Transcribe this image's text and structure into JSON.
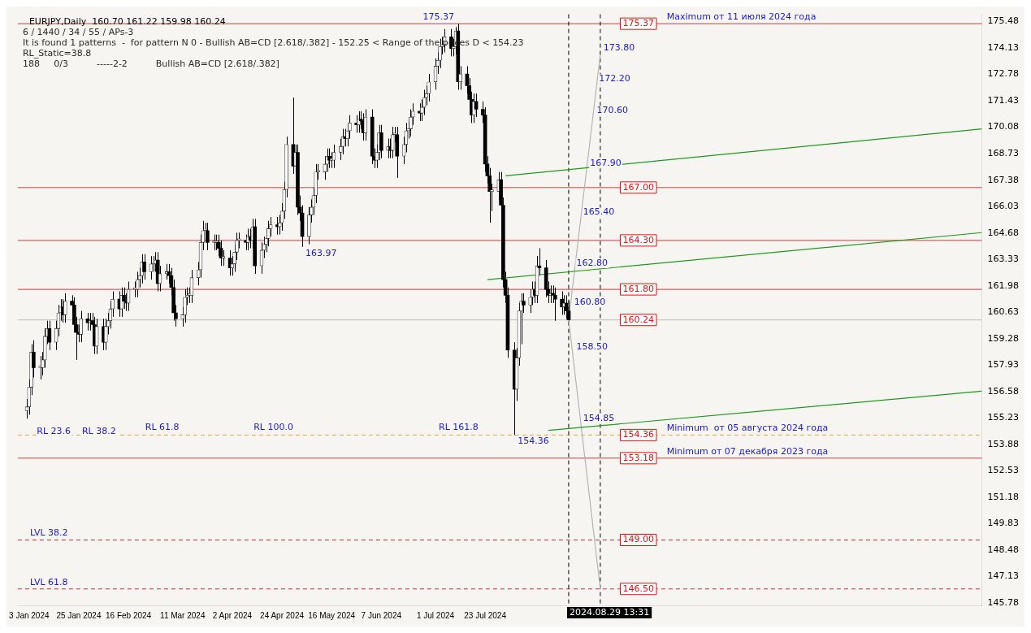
{
  "chart_data": {
    "type": "candlestick",
    "title": "EURJPY,Daily  160.70 161.22 159.98 160.24",
    "annotations": [
      "6 / 1440 / 34 / 55 / APs-3",
      "It is found 1 patterns  -  for pattern N 0 - Bullish AB=CD [2.618/.382] - 152.25 < Range of the prices D < 154.23",
      "RL_Static=38.8",
      "188     0/3          -----2-2          Bullish AB=CD [2.618/.382]",
      {
        "text": "Maximum от 11 июля 2024 года",
        "x": "2024-10-10",
        "y": 175.37
      },
      {
        "text": "Minimum  от 05 августа 2024 года",
        "x": "2024-10-10",
        "y": 154.36
      },
      {
        "text": "Minimum от 07 декабря 2023 года",
        "x": "2024-10-10",
        "y": 153.18
      },
      {
        "text": "175.37",
        "x": "2024-06-24",
        "y": 175.37
      },
      {
        "text": "163.97",
        "x": "2024-05-03",
        "y": 163.97
      },
      {
        "text": "154.36",
        "x": "2024-08-05",
        "y": 154.36
      },
      {
        "text": "173.80",
        "x": "2024-09-12",
        "y": 173.8
      },
      {
        "text": "172.20",
        "x": "2024-09-10",
        "y": 172.2
      },
      {
        "text": "170.60",
        "x": "2024-09-09",
        "y": 170.6
      },
      {
        "text": "167.90",
        "x": "2024-09-06",
        "y": 167.9
      },
      {
        "text": "165.40",
        "x": "2024-09-03",
        "y": 165.4
      },
      {
        "text": "162.80",
        "x": "2024-08-31",
        "y": 162.8
      },
      {
        "text": "160.80",
        "x": "2024-08-30",
        "y": 160.8
      },
      {
        "text": "158.50",
        "x": "2024-08-31",
        "y": 158.5
      },
      {
        "text": "154.85",
        "x": "2024-09-03",
        "y": 154.85
      },
      {
        "text": "RL 23.6",
        "x": "2024-01-05",
        "y": 154.2
      },
      {
        "text": "RL 38.2",
        "x": "2024-01-25",
        "y": 154.2
      },
      {
        "text": "RL 61.8",
        "x": "2024-02-22",
        "y": 154.4
      },
      {
        "text": "RL 100.0",
        "x": "2024-04-10",
        "y": 154.4
      },
      {
        "text": "RL 161.8",
        "x": "2024-07-01",
        "y": 154.4
      },
      {
        "text": "LVL 38.2",
        "x": "2024-01-02",
        "y": 149.0
      },
      {
        "text": "LVL 61.8",
        "x": "2024-01-02",
        "y": 146.5
      }
    ],
    "x": [
      "2024-01-02",
      "2024-01-03",
      "2024-01-04",
      "2024-01-05",
      "2024-01-08",
      "2024-01-09",
      "2024-01-10",
      "2024-01-11",
      "2024-01-12",
      "2024-01-15",
      "2024-01-16",
      "2024-01-17",
      "2024-01-18",
      "2024-01-19",
      "2024-01-22",
      "2024-01-23",
      "2024-01-24",
      "2024-01-25",
      "2024-01-26",
      "2024-01-29",
      "2024-01-30",
      "2024-01-31",
      "2024-02-01",
      "2024-02-02",
      "2024-02-05",
      "2024-02-06",
      "2024-02-07",
      "2024-02-08",
      "2024-02-09",
      "2024-02-12",
      "2024-02-13",
      "2024-02-14",
      "2024-02-15",
      "2024-02-16",
      "2024-02-19",
      "2024-02-20",
      "2024-02-21",
      "2024-02-22",
      "2024-02-23",
      "2024-02-26",
      "2024-02-27",
      "2024-02-28",
      "2024-02-29",
      "2024-03-01",
      "2024-03-04",
      "2024-03-05",
      "2024-03-06",
      "2024-03-07",
      "2024-03-08",
      "2024-03-11",
      "2024-03-12",
      "2024-03-13",
      "2024-03-14",
      "2024-03-15",
      "2024-03-18",
      "2024-03-19",
      "2024-03-20",
      "2024-03-21",
      "2024-03-22",
      "2024-03-25",
      "2024-03-26",
      "2024-03-27",
      "2024-03-28",
      "2024-03-29",
      "2024-04-01",
      "2024-04-02",
      "2024-04-03",
      "2024-04-04",
      "2024-04-05",
      "2024-04-08",
      "2024-04-09",
      "2024-04-10",
      "2024-04-11",
      "2024-04-12",
      "2024-04-15",
      "2024-04-16",
      "2024-04-17",
      "2024-04-18",
      "2024-04-19",
      "2024-04-22",
      "2024-04-23",
      "2024-04-24",
      "2024-04-25",
      "2024-04-26",
      "2024-04-29",
      "2024-04-30",
      "2024-05-01",
      "2024-05-02",
      "2024-05-03",
      "2024-05-06",
      "2024-05-07",
      "2024-05-08",
      "2024-05-09",
      "2024-05-10",
      "2024-05-13",
      "2024-05-14",
      "2024-05-15",
      "2024-05-16",
      "2024-05-17",
      "2024-05-20",
      "2024-05-21",
      "2024-05-22",
      "2024-05-23",
      "2024-05-24",
      "2024-05-27",
      "2024-05-28",
      "2024-05-29",
      "2024-05-30",
      "2024-05-31",
      "2024-06-03",
      "2024-06-04",
      "2024-06-05",
      "2024-06-06",
      "2024-06-07",
      "2024-06-10",
      "2024-06-11",
      "2024-06-12",
      "2024-06-13",
      "2024-06-14",
      "2024-06-17",
      "2024-06-18",
      "2024-06-19",
      "2024-06-20",
      "2024-06-21",
      "2024-06-24",
      "2024-06-25",
      "2024-06-26",
      "2024-06-27",
      "2024-06-28",
      "2024-07-01",
      "2024-07-02",
      "2024-07-03",
      "2024-07-04",
      "2024-07-05",
      "2024-07-08",
      "2024-07-09",
      "2024-07-10",
      "2024-07-11",
      "2024-07-12",
      "2024-07-15",
      "2024-07-16",
      "2024-07-17",
      "2024-07-18",
      "2024-07-19",
      "2024-07-22",
      "2024-07-23",
      "2024-07-24",
      "2024-07-25",
      "2024-07-26",
      "2024-07-29",
      "2024-07-30",
      "2024-07-31",
      "2024-08-01",
      "2024-08-02",
      "2024-08-05",
      "2024-08-06",
      "2024-08-07",
      "2024-08-08",
      "2024-08-09",
      "2024-08-12",
      "2024-08-13",
      "2024-08-14",
      "2024-08-15",
      "2024-08-16",
      "2024-08-19",
      "2024-08-20",
      "2024-08-21",
      "2024-08-22",
      "2024-08-23",
      "2024-08-26",
      "2024-08-27",
      "2024-08-28",
      "2024-08-29"
    ],
    "ohlc": [
      [
        155.6,
        156.2,
        155.2,
        155.8
      ],
      [
        155.8,
        157.2,
        155.4,
        156.8
      ],
      [
        156.8,
        159.0,
        156.4,
        158.6
      ],
      [
        158.6,
        159.2,
        157.3,
        157.8
      ],
      [
        157.8,
        158.4,
        157.2,
        157.8
      ],
      [
        157.8,
        158.6,
        157.4,
        158.2
      ],
      [
        158.2,
        159.8,
        157.8,
        159.4
      ],
      [
        159.4,
        160.2,
        159.0,
        159.8
      ],
      [
        159.8,
        160.2,
        158.7,
        159.1
      ],
      [
        159.1,
        160.2,
        158.7,
        159.8
      ],
      [
        159.8,
        161.0,
        159.4,
        160.6
      ],
      [
        160.6,
        161.3,
        160.2,
        160.9
      ],
      [
        160.9,
        161.3,
        160.1,
        160.5
      ],
      [
        160.5,
        161.6,
        160.1,
        161.2
      ],
      [
        161.2,
        161.5,
        160.6,
        161.0
      ],
      [
        161.0,
        161.4,
        159.6,
        160.0
      ],
      [
        160.0,
        160.4,
        158.2,
        159.6
      ],
      [
        159.6,
        160.0,
        159.1,
        159.5
      ],
      [
        159.5,
        160.7,
        159.1,
        160.3
      ],
      [
        160.3,
        160.6,
        159.7,
        160.1
      ],
      [
        160.1,
        160.6,
        159.7,
        160.2
      ],
      [
        160.2,
        160.6,
        159.6,
        160.0
      ],
      [
        160.0,
        160.4,
        158.5,
        158.9
      ],
      [
        158.9,
        160.3,
        158.5,
        159.9
      ],
      [
        159.9,
        160.3,
        158.7,
        159.1
      ],
      [
        159.1,
        160.3,
        158.7,
        159.9
      ],
      [
        159.9,
        160.6,
        159.5,
        160.2
      ],
      [
        160.2,
        161.2,
        159.8,
        160.8
      ],
      [
        160.8,
        161.7,
        160.4,
        161.3
      ],
      [
        161.3,
        161.7,
        160.4,
        160.8
      ],
      [
        160.8,
        161.9,
        160.4,
        161.5
      ],
      [
        161.5,
        161.9,
        160.8,
        161.2
      ],
      [
        161.2,
        161.6,
        160.7,
        161.1
      ],
      [
        161.1,
        162.2,
        160.7,
        161.8
      ],
      [
        161.8,
        162.2,
        161.4,
        161.8
      ],
      [
        161.8,
        162.7,
        161.4,
        162.3
      ],
      [
        162.3,
        162.9,
        161.9,
        162.5
      ],
      [
        162.5,
        163.6,
        162.1,
        163.2
      ],
      [
        163.2,
        163.6,
        162.3,
        162.7
      ],
      [
        162.7,
        163.5,
        162.3,
        163.1
      ],
      [
        163.1,
        163.5,
        162.7,
        163.1
      ],
      [
        163.1,
        163.7,
        162.7,
        163.3
      ],
      [
        163.3,
        163.7,
        161.7,
        162.1
      ],
      [
        162.1,
        163.0,
        161.7,
        162.6
      ],
      [
        162.6,
        163.1,
        162.3,
        162.7
      ],
      [
        162.7,
        163.1,
        162.1,
        162.5
      ],
      [
        162.5,
        162.9,
        161.5,
        161.9
      ],
      [
        161.9,
        162.3,
        160.2,
        160.6
      ],
      [
        160.6,
        161.0,
        159.9,
        160.3
      ],
      [
        160.3,
        160.9,
        159.9,
        160.5
      ],
      [
        160.5,
        161.8,
        160.1,
        161.4
      ],
      [
        161.4,
        161.9,
        161.0,
        161.5
      ],
      [
        161.5,
        161.9,
        161.1,
        161.5
      ],
      [
        161.5,
        162.8,
        161.1,
        162.4
      ],
      [
        162.4,
        163.2,
        162.0,
        162.8
      ],
      [
        162.8,
        164.6,
        162.4,
        164.2
      ],
      [
        164.2,
        165.3,
        163.8,
        164.8
      ],
      [
        164.8,
        165.2,
        164.4,
        164.8
      ],
      [
        164.8,
        165.2,
        163.8,
        164.2
      ],
      [
        164.2,
        164.6,
        163.8,
        164.2
      ],
      [
        164.2,
        164.6,
        163.8,
        164.2
      ],
      [
        164.2,
        164.6,
        163.5,
        163.9
      ],
      [
        163.9,
        164.3,
        163.0,
        163.4
      ],
      [
        163.4,
        163.8,
        163.0,
        163.4
      ],
      [
        163.4,
        163.8,
        162.5,
        162.9
      ],
      [
        162.9,
        163.5,
        162.5,
        163.1
      ],
      [
        163.1,
        164.1,
        162.7,
        163.7
      ],
      [
        163.7,
        164.7,
        163.3,
        164.3
      ],
      [
        164.3,
        164.7,
        163.9,
        164.3
      ],
      [
        164.3,
        164.6,
        163.8,
        164.2
      ],
      [
        164.2,
        164.9,
        163.8,
        164.5
      ],
      [
        164.5,
        164.9,
        163.9,
        164.3
      ],
      [
        164.3,
        165.4,
        163.9,
        165.0
      ],
      [
        165.0,
        165.4,
        162.6,
        163.0
      ],
      [
        163.0,
        164.2,
        162.6,
        163.8
      ],
      [
        163.8,
        164.5,
        163.4,
        164.1
      ],
      [
        164.1,
        164.8,
        163.7,
        164.4
      ],
      [
        164.4,
        165.3,
        164.0,
        164.9
      ],
      [
        164.9,
        165.5,
        164.5,
        165.1
      ],
      [
        165.1,
        165.5,
        164.6,
        165.0
      ],
      [
        165.0,
        165.6,
        164.6,
        165.2
      ],
      [
        165.2,
        166.2,
        164.8,
        165.8
      ],
      [
        165.8,
        167.3,
        165.4,
        166.9
      ],
      [
        166.9,
        169.6,
        166.5,
        169.2
      ],
      [
        169.2,
        171.6,
        167.7,
        168.1
      ],
      [
        168.1,
        169.2,
        167.7,
        168.8
      ],
      [
        168.8,
        169.2,
        165.6,
        166.0
      ],
      [
        166.0,
        166.6,
        165.3,
        165.7
      ],
      [
        165.7,
        166.1,
        163.97,
        164.5
      ],
      [
        164.5,
        166.0,
        164.1,
        165.6
      ],
      [
        165.6,
        166.4,
        165.2,
        166.0
      ],
      [
        166.0,
        167.0,
        165.6,
        166.6
      ],
      [
        166.6,
        168.2,
        166.2,
        167.8
      ],
      [
        167.8,
        168.2,
        167.4,
        167.8
      ],
      [
        167.8,
        168.6,
        167.4,
        168.2
      ],
      [
        168.2,
        169.0,
        167.8,
        168.6
      ],
      [
        168.6,
        169.0,
        168.0,
        168.4
      ],
      [
        168.4,
        168.8,
        168.0,
        168.4
      ],
      [
        168.4,
        169.2,
        168.0,
        168.8
      ],
      [
        168.8,
        169.5,
        168.4,
        169.1
      ],
      [
        169.1,
        170.0,
        168.7,
        169.6
      ],
      [
        169.6,
        170.0,
        169.1,
        169.5
      ],
      [
        169.5,
        170.3,
        169.1,
        169.9
      ],
      [
        169.9,
        170.7,
        169.5,
        170.3
      ],
      [
        170.3,
        170.7,
        169.8,
        170.2
      ],
      [
        170.2,
        170.9,
        169.8,
        170.5
      ],
      [
        170.5,
        170.9,
        170.0,
        170.4
      ],
      [
        170.4,
        170.8,
        169.4,
        169.8
      ],
      [
        169.8,
        171.0,
        169.4,
        170.6
      ],
      [
        170.6,
        171.0,
        168.2,
        168.6
      ],
      [
        168.6,
        169.0,
        168.0,
        168.4
      ],
      [
        168.4,
        169.2,
        168.0,
        168.8
      ],
      [
        168.8,
        170.2,
        168.4,
        169.8
      ],
      [
        169.8,
        170.2,
        168.5,
        168.9
      ],
      [
        168.9,
        169.5,
        168.5,
        169.1
      ],
      [
        169.1,
        169.5,
        168.5,
        168.9
      ],
      [
        168.9,
        170.1,
        168.5,
        169.7
      ],
      [
        169.7,
        170.1,
        169.3,
        169.7
      ],
      [
        169.7,
        170.1,
        167.5,
        168.6
      ],
      [
        168.6,
        169.6,
        168.2,
        169.2
      ],
      [
        169.2,
        170.3,
        168.8,
        169.9
      ],
      [
        169.9,
        170.4,
        169.5,
        170.0
      ],
      [
        170.0,
        171.0,
        169.6,
        170.6
      ],
      [
        170.6,
        171.3,
        170.2,
        170.9
      ],
      [
        170.9,
        171.3,
        170.4,
        170.8
      ],
      [
        170.8,
        171.5,
        170.4,
        171.1
      ],
      [
        171.1,
        172.0,
        170.7,
        171.6
      ],
      [
        171.6,
        172.2,
        171.2,
        171.8
      ],
      [
        171.8,
        172.8,
        171.4,
        172.4
      ],
      [
        172.4,
        173.6,
        172.0,
        173.2
      ],
      [
        173.2,
        173.9,
        172.8,
        173.5
      ],
      [
        173.5,
        174.6,
        173.1,
        174.2
      ],
      [
        174.2,
        174.7,
        173.8,
        174.3
      ],
      [
        174.3,
        175.1,
        173.9,
        174.7
      ],
      [
        174.7,
        175.1,
        173.7,
        174.1
      ],
      [
        174.1,
        174.6,
        173.7,
        174.2
      ],
      [
        174.2,
        175.2,
        173.8,
        175.0
      ],
      [
        175.0,
        175.37,
        172.0,
        172.4
      ],
      [
        172.4,
        173.2,
        172.0,
        172.8
      ],
      [
        172.8,
        173.2,
        171.8,
        172.2
      ],
      [
        172.2,
        172.6,
        171.1,
        171.5
      ],
      [
        171.5,
        171.9,
        170.3,
        170.7
      ],
      [
        170.7,
        171.8,
        170.3,
        171.4
      ],
      [
        171.4,
        171.8,
        170.6,
        171.0
      ],
      [
        171.0,
        171.4,
        170.3,
        170.7
      ],
      [
        170.7,
        171.1,
        167.8,
        168.2
      ],
      [
        168.2,
        168.6,
        167.2,
        167.6
      ],
      [
        167.6,
        168.0,
        165.2,
        166.8
      ],
      [
        166.8,
        167.2,
        165.8,
        166.8
      ],
      [
        166.8,
        167.8,
        166.4,
        167.4
      ],
      [
        167.4,
        167.8,
        165.7,
        166.1
      ],
      [
        166.1,
        166.5,
        161.9,
        162.3
      ],
      [
        162.3,
        162.7,
        161.1,
        161.5
      ],
      [
        161.5,
        161.9,
        158.3,
        158.7
      ],
      [
        158.7,
        159.1,
        154.36,
        156.7
      ],
      [
        156.7,
        158.8,
        156.1,
        158.3
      ],
      [
        158.3,
        161.1,
        157.9,
        160.7
      ],
      [
        160.7,
        161.6,
        159.0,
        161.2
      ],
      [
        161.2,
        161.6,
        160.6,
        161.0
      ],
      [
        161.0,
        161.8,
        160.6,
        161.4
      ],
      [
        161.4,
        162.2,
        161.0,
        161.8
      ],
      [
        161.8,
        162.2,
        161.1,
        161.5
      ],
      [
        161.5,
        163.5,
        161.1,
        163.0
      ],
      [
        163.0,
        163.9,
        162.5,
        162.9
      ],
      [
        162.9,
        163.3,
        161.4,
        161.8
      ],
      [
        161.8,
        162.2,
        161.1,
        161.5
      ],
      [
        161.5,
        162.0,
        161.1,
        161.6
      ],
      [
        161.6,
        162.0,
        161.1,
        161.5
      ],
      [
        161.5,
        161.9,
        160.2,
        161.3
      ],
      [
        161.3,
        161.7,
        160.5,
        160.9
      ],
      [
        160.9,
        161.5,
        160.5,
        161.1
      ],
      [
        161.1,
        161.5,
        160.3,
        160.7
      ],
      [
        160.7,
        161.22,
        159.98,
        160.24
      ]
    ],
    "series": [
      {
        "type": "line",
        "color": "#1f9a1f",
        "x": [
          "2024-08-01",
          "2025-02-28"
        ],
        "values": [
          167.6,
          170.0
        ]
      },
      {
        "type": "line",
        "color": "#1f9a1f",
        "x": [
          "2024-07-24",
          "2025-02-28"
        ],
        "values": [
          162.3,
          164.7
        ]
      },
      {
        "type": "line",
        "color": "#1f9a1f",
        "x": [
          "2024-08-20",
          "2025-02-28"
        ],
        "values": [
          154.6,
          156.6
        ]
      },
      {
        "type": "line",
        "color": "#b4b4b4",
        "x": [
          "2024-09-12",
          "2024-08-29",
          "2024-09-12"
        ],
        "values": [
          173.8,
          160.24,
          146.5
        ]
      }
    ],
    "ref_lines": [
      {
        "axis": "y",
        "value": 175.37,
        "label": "175.37",
        "color": "#d23c3c"
      },
      {
        "axis": "y",
        "value": 167.0,
        "label": "167.00",
        "color": "#d23c3c"
      },
      {
        "axis": "y",
        "value": 164.3,
        "label": "164.30",
        "color": "#d23c3c"
      },
      {
        "axis": "y",
        "value": 161.8,
        "label": "161.80",
        "color": "#d23c3c"
      },
      {
        "axis": "y",
        "value": 160.24,
        "label": "160.24",
        "color": "#bdbdbd"
      },
      {
        "axis": "y",
        "value": 154.36,
        "label": "154.36",
        "color": "#e8a040",
        "line_style": "dashed"
      },
      {
        "axis": "y",
        "value": 153.18,
        "label": "153.18",
        "color": "#d23c3c"
      },
      {
        "axis": "y",
        "value": 149.0,
        "label": "149.00",
        "color": "#c83232",
        "line_style": "dashed"
      },
      {
        "axis": "y",
        "value": 146.5,
        "label": "146.50",
        "color": "#c83232",
        "line_style": "dashed"
      },
      {
        "axis": "x",
        "value": "2024-08-29",
        "label": "2024.08.29 13:31",
        "color": "#000000",
        "line_style": "dashed"
      },
      {
        "axis": "x",
        "value": "2024-09-12",
        "label": null,
        "color": "#000000",
        "line_style": "dashed"
      }
    ],
    "xlim": [
      "2023-12-29",
      "2025-02-28"
    ],
    "xticks": [
      {
        "value": "2024-01-03",
        "label": "3 Jan 2024"
      },
      {
        "value": "2024-01-25",
        "label": "25 Jan 2024"
      },
      {
        "value": "2024-02-16",
        "label": "16 Feb 2024"
      },
      {
        "value": "2024-03-11",
        "label": "11 Mar 2024"
      },
      {
        "value": "2024-04-02",
        "label": "2 Apr 2024"
      },
      {
        "value": "2024-04-24",
        "label": "24 Apr 2024"
      },
      {
        "value": "2024-05-16",
        "label": "16 May 2024"
      },
      {
        "value": "2024-06-07",
        "label": "7 Jun 2024"
      },
      {
        "value": "2024-07-01",
        "label": "1 Jul 2024"
      },
      {
        "value": "2024-07-23",
        "label": "23 Jul 2024"
      }
    ],
    "ylim": [
      145.66,
      175.85
    ],
    "yticks": [
      175.48,
      174.13,
      172.78,
      171.43,
      170.08,
      168.73,
      167.38,
      166.03,
      164.68,
      163.33,
      161.98,
      160.63,
      159.28,
      157.93,
      156.58,
      155.23,
      153.88,
      152.53,
      151.18,
      149.83,
      148.48,
      147.13,
      145.78
    ],
    "grid": false,
    "legend": false
  }
}
